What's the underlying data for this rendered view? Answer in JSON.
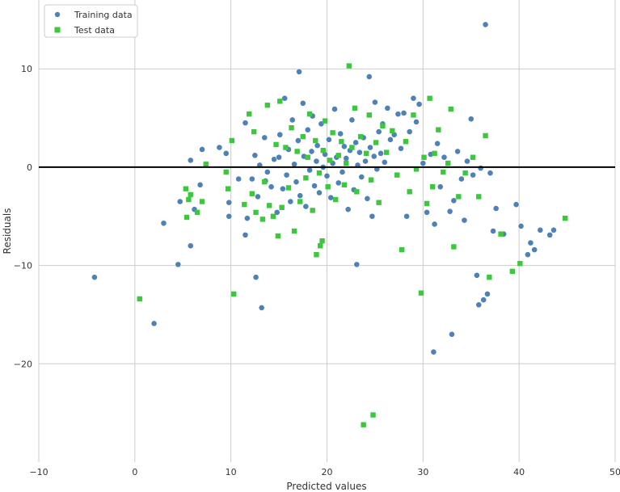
{
  "chart_data": {
    "type": "scatter",
    "xlabel": "Predicted values",
    "ylabel": "Residuals",
    "xlim": [
      -10,
      50
    ],
    "ylim": [
      -30,
      17
    ],
    "x_ticks": [
      -10,
      0,
      10,
      20,
      30,
      40,
      50
    ],
    "y_ticks": [
      -20,
      -10,
      0,
      10
    ],
    "grid": true,
    "legend_position": "top-left",
    "hline": {
      "y": 0,
      "color": "#000000"
    },
    "series": [
      {
        "name": "Training data",
        "marker": "circle",
        "color": "#4f81b8",
        "points": [
          [
            -4.2,
            -11.2
          ],
          [
            2.0,
            -15.9
          ],
          [
            3.0,
            -5.7
          ],
          [
            4.5,
            -9.9
          ],
          [
            4.7,
            -3.5
          ],
          [
            5.8,
            -8.0
          ],
          [
            5.8,
            0.7
          ],
          [
            6.2,
            -4.3
          ],
          [
            6.8,
            -1.8
          ],
          [
            7.0,
            1.8
          ],
          [
            8.8,
            2.0
          ],
          [
            9.5,
            1.4
          ],
          [
            9.8,
            -3.6
          ],
          [
            9.8,
            -5.0
          ],
          [
            10.8,
            -1.2
          ],
          [
            11.5,
            4.5
          ],
          [
            11.5,
            -6.9
          ],
          [
            11.7,
            -5.2
          ],
          [
            12.2,
            -1.2
          ],
          [
            12.5,
            1.2
          ],
          [
            12.8,
            -3.0
          ],
          [
            12.6,
            -11.2
          ],
          [
            13.2,
            -14.3
          ],
          [
            13.0,
            0.2
          ],
          [
            13.5,
            3.0
          ],
          [
            13.6,
            -1.4
          ],
          [
            13.8,
            -0.5
          ],
          [
            14.2,
            -2.0
          ],
          [
            14.5,
            0.8
          ],
          [
            14.8,
            -4.6
          ],
          [
            15.0,
            1.0
          ],
          [
            15.1,
            3.3
          ],
          [
            15.4,
            -2.2
          ],
          [
            15.6,
            7.0
          ],
          [
            15.8,
            -0.8
          ],
          [
            16.0,
            1.8
          ],
          [
            16.2,
            -3.5
          ],
          [
            16.4,
            4.8
          ],
          [
            16.6,
            0.3
          ],
          [
            16.8,
            -1.5
          ],
          [
            17.0,
            2.7
          ],
          [
            17.1,
            9.7
          ],
          [
            17.2,
            -2.9
          ],
          [
            17.5,
            6.5
          ],
          [
            17.6,
            1.1
          ],
          [
            17.8,
            -4.0
          ],
          [
            18.0,
            3.8
          ],
          [
            18.2,
            -0.3
          ],
          [
            18.4,
            1.6
          ],
          [
            18.5,
            5.2
          ],
          [
            18.7,
            -1.9
          ],
          [
            18.9,
            0.6
          ],
          [
            19.0,
            2.2
          ],
          [
            19.2,
            -2.6
          ],
          [
            19.4,
            4.4
          ],
          [
            19.6,
            0.0
          ],
          [
            19.8,
            1.3
          ],
          [
            20.0,
            -0.9
          ],
          [
            20.2,
            2.8
          ],
          [
            20.4,
            -3.1
          ],
          [
            20.6,
            0.4
          ],
          [
            20.8,
            5.9
          ],
          [
            21.0,
            1.0
          ],
          [
            21.2,
            -1.6
          ],
          [
            21.4,
            3.4
          ],
          [
            21.6,
            -0.5
          ],
          [
            21.8,
            2.1
          ],
          [
            22.0,
            0.9
          ],
          [
            22.2,
            -4.3
          ],
          [
            22.4,
            1.7
          ],
          [
            22.6,
            4.8
          ],
          [
            22.8,
            -2.3
          ],
          [
            23.0,
            2.5
          ],
          [
            23.1,
            -9.9
          ],
          [
            23.2,
            0.2
          ],
          [
            23.4,
            1.5
          ],
          [
            23.6,
            -1.0
          ],
          [
            23.8,
            3.0
          ],
          [
            24.0,
            0.6
          ],
          [
            24.2,
            -3.2
          ],
          [
            24.4,
            9.2
          ],
          [
            24.5,
            2.0
          ],
          [
            24.7,
            -5.0
          ],
          [
            24.9,
            1.1
          ],
          [
            25.0,
            6.6
          ],
          [
            25.2,
            -0.2
          ],
          [
            25.4,
            3.6
          ],
          [
            25.6,
            1.4
          ],
          [
            25.8,
            4.4
          ],
          [
            26.0,
            0.5
          ],
          [
            26.3,
            6.0
          ],
          [
            26.6,
            2.8
          ],
          [
            27.0,
            3.3
          ],
          [
            27.4,
            5.4
          ],
          [
            27.7,
            1.9
          ],
          [
            28.0,
            5.5
          ],
          [
            28.3,
            -5.0
          ],
          [
            28.6,
            3.6
          ],
          [
            29.0,
            7.0
          ],
          [
            29.3,
            4.6
          ],
          [
            29.6,
            6.4
          ],
          [
            30.0,
            0.4
          ],
          [
            30.4,
            -4.6
          ],
          [
            30.8,
            1.3
          ],
          [
            31.1,
            -18.8
          ],
          [
            31.2,
            -5.8
          ],
          [
            31.5,
            2.4
          ],
          [
            31.8,
            -2.0
          ],
          [
            32.2,
            1.0
          ],
          [
            32.8,
            -4.5
          ],
          [
            33.0,
            -17.0
          ],
          [
            33.2,
            -3.4
          ],
          [
            33.6,
            1.6
          ],
          [
            34.0,
            -1.2
          ],
          [
            34.3,
            -5.4
          ],
          [
            34.6,
            0.6
          ],
          [
            35.0,
            4.9
          ],
          [
            35.2,
            -0.8
          ],
          [
            35.6,
            -11.0
          ],
          [
            35.8,
            -14.0
          ],
          [
            36.0,
            -0.1
          ],
          [
            36.3,
            -13.5
          ],
          [
            36.5,
            14.5
          ],
          [
            36.7,
            -12.9
          ],
          [
            37.0,
            -0.6
          ],
          [
            37.3,
            -6.5
          ],
          [
            37.6,
            -4.2
          ],
          [
            38.4,
            -6.8
          ],
          [
            39.7,
            -3.8
          ],
          [
            40.2,
            -6.0
          ],
          [
            40.9,
            -8.9
          ],
          [
            41.2,
            -7.7
          ],
          [
            41.6,
            -8.4
          ],
          [
            42.2,
            -6.4
          ],
          [
            43.2,
            -6.9
          ],
          [
            43.6,
            -6.4
          ]
        ]
      },
      {
        "name": "Test data",
        "marker": "square",
        "color": "#3cc83c",
        "points": [
          [
            0.5,
            -13.4
          ],
          [
            5.3,
            -2.2
          ],
          [
            5.4,
            -5.1
          ],
          [
            5.6,
            -3.3
          ],
          [
            5.8,
            -2.8
          ],
          [
            6.5,
            -4.6
          ],
          [
            7.0,
            -3.5
          ],
          [
            7.4,
            0.3
          ],
          [
            9.5,
            -0.5
          ],
          [
            9.7,
            -2.2
          ],
          [
            10.1,
            2.7
          ],
          [
            10.3,
            -12.9
          ],
          [
            11.4,
            -3.8
          ],
          [
            11.9,
            5.4
          ],
          [
            12.2,
            -2.7
          ],
          [
            12.4,
            3.6
          ],
          [
            12.6,
            -4.6
          ],
          [
            13.3,
            -5.3
          ],
          [
            13.5,
            -1.5
          ],
          [
            13.8,
            6.3
          ],
          [
            14.0,
            -3.9
          ],
          [
            14.4,
            -5.0
          ],
          [
            14.7,
            2.3
          ],
          [
            14.9,
            -7.0
          ],
          [
            15.1,
            6.7
          ],
          [
            15.3,
            -4.1
          ],
          [
            15.7,
            2.0
          ],
          [
            16.0,
            -2.1
          ],
          [
            16.3,
            4.0
          ],
          [
            16.6,
            -6.5
          ],
          [
            16.9,
            1.6
          ],
          [
            17.2,
            -3.5
          ],
          [
            17.5,
            3.1
          ],
          [
            17.8,
            -1.1
          ],
          [
            18.0,
            1.0
          ],
          [
            18.2,
            5.4
          ],
          [
            18.5,
            -4.4
          ],
          [
            18.8,
            2.7
          ],
          [
            18.9,
            -8.9
          ],
          [
            19.2,
            -0.6
          ],
          [
            19.3,
            -8.0
          ],
          [
            19.5,
            -7.5
          ],
          [
            19.6,
            1.7
          ],
          [
            19.8,
            4.7
          ],
          [
            20.1,
            -2.0
          ],
          [
            20.3,
            0.7
          ],
          [
            20.6,
            3.5
          ],
          [
            20.9,
            -3.3
          ],
          [
            21.2,
            1.2
          ],
          [
            21.5,
            2.6
          ],
          [
            21.8,
            -1.8
          ],
          [
            22.0,
            0.4
          ],
          [
            22.3,
            10.3
          ],
          [
            22.6,
            2.0
          ],
          [
            22.9,
            6.0
          ],
          [
            23.1,
            -2.5
          ],
          [
            23.5,
            3.1
          ],
          [
            23.8,
            -26.2
          ],
          [
            24.1,
            1.4
          ],
          [
            24.4,
            5.3
          ],
          [
            24.6,
            -1.3
          ],
          [
            24.8,
            -25.2
          ],
          [
            25.1,
            2.5
          ],
          [
            25.4,
            -3.6
          ],
          [
            25.8,
            4.2
          ],
          [
            26.2,
            1.5
          ],
          [
            26.8,
            3.7
          ],
          [
            27.3,
            -0.8
          ],
          [
            27.8,
            -8.4
          ],
          [
            28.2,
            2.6
          ],
          [
            28.6,
            -2.5
          ],
          [
            29.0,
            5.3
          ],
          [
            29.3,
            -0.2
          ],
          [
            29.8,
            -12.8
          ],
          [
            30.1,
            1.0
          ],
          [
            30.4,
            -3.7
          ],
          [
            30.7,
            7.0
          ],
          [
            31.0,
            -2.0
          ],
          [
            31.2,
            1.4
          ],
          [
            31.6,
            3.8
          ],
          [
            32.1,
            -0.5
          ],
          [
            32.6,
            0.4
          ],
          [
            32.9,
            5.9
          ],
          [
            33.2,
            -8.1
          ],
          [
            33.7,
            -3.0
          ],
          [
            34.4,
            -0.6
          ],
          [
            35.2,
            1.0
          ],
          [
            35.8,
            -3.0
          ],
          [
            36.5,
            3.2
          ],
          [
            36.9,
            -11.2
          ],
          [
            38.1,
            -6.8
          ],
          [
            39.3,
            -10.6
          ],
          [
            40.1,
            -9.8
          ],
          [
            44.8,
            -5.2
          ]
        ]
      }
    ]
  }
}
